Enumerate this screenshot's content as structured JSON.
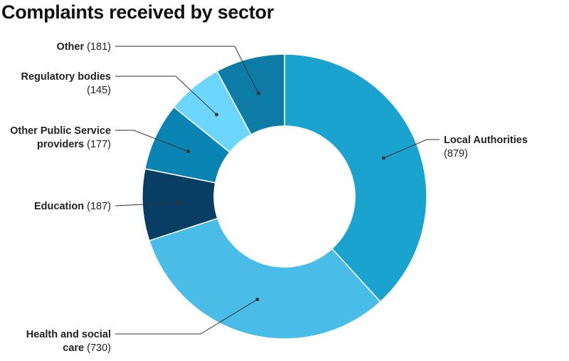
{
  "chart_data": {
    "type": "pie",
    "title": "Complaints received by sector",
    "donut": true,
    "slices": [
      {
        "name": "Local Authorities",
        "value": 879,
        "color": "#1ba3d0",
        "label_lines": [
          "Local Authorities",
          "(879)"
        ]
      },
      {
        "name": "Health and social care",
        "value": 730,
        "color": "#4abce8",
        "label_lines": [
          "Health and social",
          "care (730)"
        ]
      },
      {
        "name": "Education",
        "value": 187,
        "color": "#083e64",
        "label_lines": [
          "Education (187)"
        ]
      },
      {
        "name": "Other Public Service providers",
        "value": 177,
        "color": "#0a84b2",
        "label_lines": [
          "Other Public Service",
          "providers (177)"
        ]
      },
      {
        "name": "Regulatory bodies",
        "value": 145,
        "color": "#6dd6ff",
        "label_lines": [
          "Regulatory bodies",
          "(145)"
        ]
      },
      {
        "name": "Other",
        "value": 181,
        "color": "#0c7ba6",
        "label_lines": [
          "Other (181)"
        ]
      }
    ]
  }
}
